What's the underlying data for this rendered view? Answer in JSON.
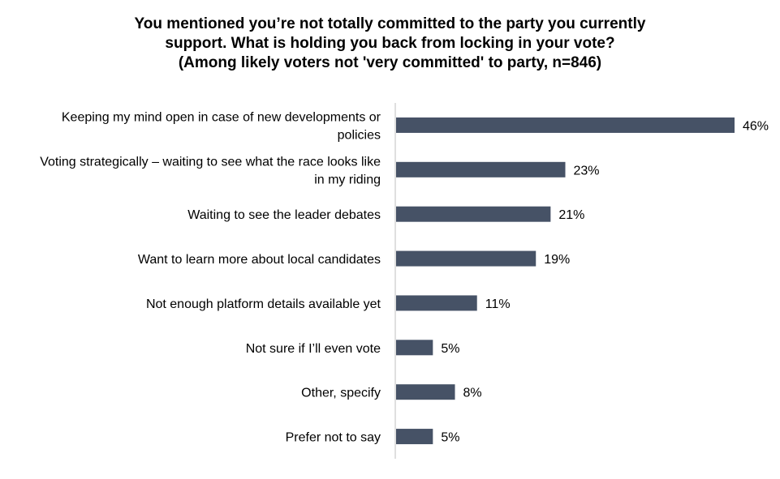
{
  "chart_data": {
    "type": "bar",
    "orientation": "horizontal",
    "title": [
      "You mentioned you’re not totally committed to the party you currently",
      "support. What is holding you back from locking in your vote?",
      "(Among likely voters not 'very committed' to party, n=846)"
    ],
    "categories": [
      [
        "Keeping my mind open in case of new developments or",
        "policies"
      ],
      [
        "Voting strategically – waiting to see what the race looks like",
        "in my riding"
      ],
      [
        "Waiting to see the leader debates"
      ],
      [
        "Want to learn more about local candidates"
      ],
      [
        "Not enough platform details available yet"
      ],
      [
        "Not sure if I’ll even vote"
      ],
      [
        "Other, specify"
      ],
      [
        "Prefer not to say"
      ]
    ],
    "values": [
      46,
      23,
      21,
      19,
      11,
      5,
      8,
      5
    ],
    "value_labels": [
      "46%",
      "23%",
      "21%",
      "19%",
      "11%",
      "5%",
      "8%",
      "5%"
    ],
    "xlim": [
      0,
      46
    ],
    "grid": false,
    "legend": "none",
    "bar_color": "#465266",
    "axis_color": "#bfbfbf"
  }
}
